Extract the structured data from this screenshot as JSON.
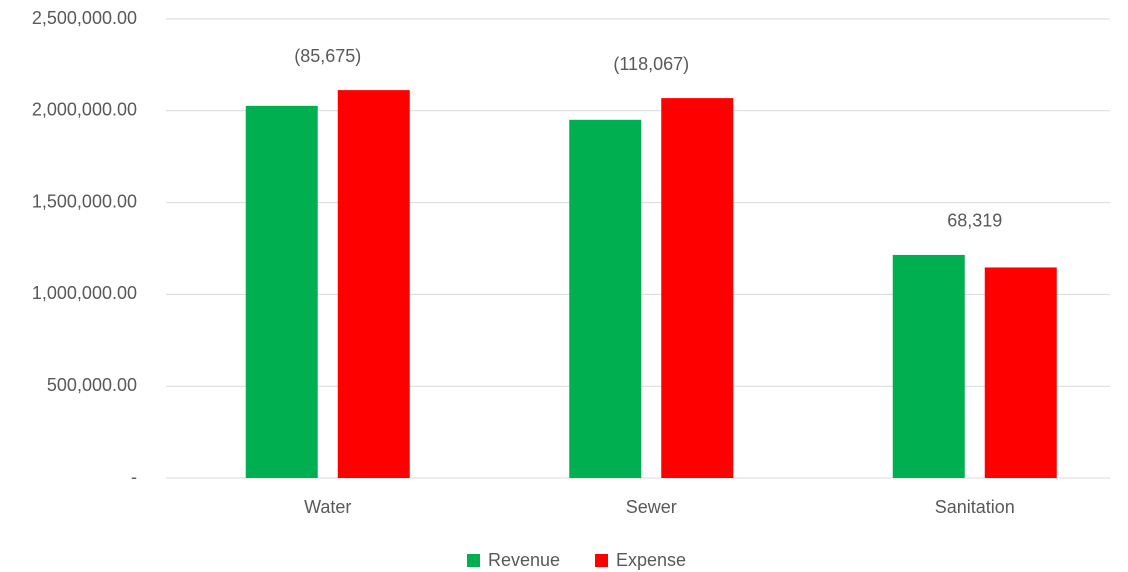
{
  "chart_data": {
    "type": "bar",
    "categories": [
      "Water",
      "Sewer",
      "Sanitation"
    ],
    "series": [
      {
        "name": "Revenue",
        "color": "#00b050",
        "values": [
          2027000,
          1951000,
          1215000
        ]
      },
      {
        "name": "Expense",
        "color": "#ff0000",
        "values": [
          2112675,
          2069067,
          1146681
        ]
      }
    ],
    "annotations": [
      "(85,675)",
      "(118,067)",
      "68,319"
    ],
    "ylim": [
      0,
      2500000
    ],
    "yticks": [
      {
        "value": 0,
        "label": "-"
      },
      {
        "value": 500000,
        "label": "500,000.00"
      },
      {
        "value": 1000000,
        "label": "1,000,000.00"
      },
      {
        "value": 1500000,
        "label": "1,500,000.00"
      },
      {
        "value": 2000000,
        "label": "2,000,000.00"
      },
      {
        "value": 2500000,
        "label": "2,500,000.00"
      }
    ],
    "grid": true,
    "legend": "bottom"
  }
}
